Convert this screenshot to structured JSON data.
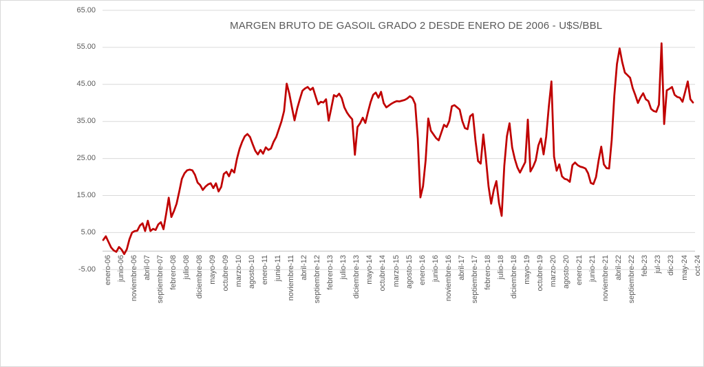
{
  "title": "MARGEN BRUTO DE GASOIL GRADO 2 DESDE ENERO DE 2006 - U$S/BBL",
  "colors": {
    "line": "#C00000",
    "gridline": "#D9D9D9",
    "axis_line": "#BFBFBF",
    "axis_text": "#595959",
    "title_text": "#595959",
    "background": "#FFFFFF",
    "frame_border": "#D9D9D9"
  },
  "chart_data": {
    "type": "line",
    "title": "MARGEN BRUTO DE GASOIL GRADO 2 DESDE ENERO DE 2006 - U$S/BBL",
    "xlabel": "",
    "ylabel": "",
    "ylim": [
      -5,
      65
    ],
    "y_major_unit": 10,
    "grid": "horizontal",
    "legend": "none",
    "line_color": "#C00000",
    "frequency": "monthly",
    "x_start": "enero-06",
    "x_end": "oct-24",
    "x_tick_interval_months": 5,
    "y_ticks": [
      65,
      55,
      45,
      35,
      25,
      15,
      5,
      -5
    ],
    "y_tick_labels": [
      "65.00",
      "55.00",
      "45.00",
      "35.00",
      "25.00",
      "15.00",
      "5.00",
      "-5.00"
    ],
    "x_tick_labels": [
      "enero-06",
      "junio-06",
      "noviembre-06",
      "abril-07",
      "septiembre-07",
      "febrero-08",
      "julio-08",
      "diciembre-08",
      "mayo-09",
      "octubre-09",
      "marzo-10",
      "agosto-10",
      "enero-11",
      "junio-11",
      "noviembre-11",
      "abril-12",
      "septiembre-12",
      "febrero-13",
      "julio-13",
      "diciembre-13",
      "mayo-14",
      "octubre-14",
      "marzo-15",
      "agosto-15",
      "enero-16",
      "junio-16",
      "noviembre-16",
      "abril-17",
      "septiembre-17",
      "febrero-18",
      "julio-18",
      "diciembre-18",
      "mayo-19",
      "octubre-19",
      "marzo-20",
      "agosto-20",
      "enero-21",
      "junio-21",
      "noviembre-21",
      "abril-22",
      "septiembre-22",
      "feb-23",
      "jul-23",
      "dic-23",
      "may-24",
      "oct-24"
    ],
    "values": [
      3.0,
      4.0,
      2.5,
      1.0,
      0.2,
      -0.2,
      1.1,
      0.4,
      -0.8,
      0.5,
      3.2,
      5.0,
      5.4,
      5.5,
      6.9,
      7.5,
      5.4,
      8.2,
      5.4,
      6.0,
      5.7,
      7.2,
      7.8,
      5.9,
      10.0,
      14.4,
      9.2,
      10.8,
      12.8,
      16.1,
      19.5,
      21.0,
      21.8,
      22.0,
      21.8,
      20.6,
      18.5,
      17.8,
      16.5,
      17.4,
      18.0,
      18.3,
      17.0,
      18.3,
      16.1,
      17.3,
      20.8,
      21.4,
      20.2,
      22.0,
      21.2,
      24.9,
      27.6,
      29.5,
      31.0,
      31.6,
      30.8,
      28.9,
      27.1,
      26.1,
      27.3,
      26.3,
      28.0,
      27.3,
      27.7,
      29.5,
      30.8,
      32.9,
      35.0,
      37.8,
      45.2,
      42.5,
      38.8,
      35.3,
      38.5,
      41.0,
      43.3,
      43.9,
      44.3,
      43.5,
      44.1,
      41.8,
      39.6,
      40.3,
      40.1,
      41.0,
      35.2,
      38.6,
      42.1,
      41.7,
      42.5,
      41.3,
      38.8,
      37.4,
      36.4,
      35.6,
      26.0,
      33.5,
      34.5,
      36.0,
      34.6,
      37.5,
      40.2,
      42.2,
      42.8,
      41.4,
      43.0,
      39.9,
      38.8,
      39.3,
      39.8,
      40.2,
      40.5,
      40.4,
      40.6,
      40.8,
      41.2,
      41.8,
      41.3,
      39.7,
      30.4,
      14.5,
      17.5,
      24.5,
      35.8,
      32.5,
      31.5,
      30.5,
      29.9,
      32.0,
      34.1,
      33.5,
      35.1,
      39.1,
      39.4,
      38.8,
      38.2,
      35.1,
      33.2,
      32.9,
      36.4,
      37.0,
      29.9,
      24.3,
      23.6,
      31.5,
      25.0,
      17.5,
      12.8,
      16.5,
      18.9,
      13.0,
      9.5,
      23.0,
      31.0,
      34.5,
      28.0,
      24.9,
      22.6,
      21.2,
      22.6,
      24.0,
      35.5,
      21.5,
      22.8,
      24.5,
      28.5,
      30.4,
      26.1,
      31.0,
      39.0,
      45.8,
      25.5,
      21.7,
      23.4,
      20.2,
      19.5,
      19.3,
      18.7,
      23.2,
      23.9,
      23.2,
      22.8,
      22.6,
      22.3,
      21.0,
      18.4,
      18.1,
      20.0,
      24.5,
      28.2,
      23.4,
      22.4,
      22.3,
      30.0,
      42.0,
      50.5,
      54.7,
      51.0,
      48.2,
      47.5,
      46.8,
      44.0,
      42.1,
      40.0,
      41.5,
      42.6,
      41.0,
      40.5,
      38.4,
      37.8,
      37.6,
      39.5,
      56.1,
      34.3,
      43.4,
      43.8,
      44.3,
      42.2,
      41.6,
      41.4,
      40.3,
      43.0,
      45.8,
      41.0,
      40.1
    ]
  }
}
